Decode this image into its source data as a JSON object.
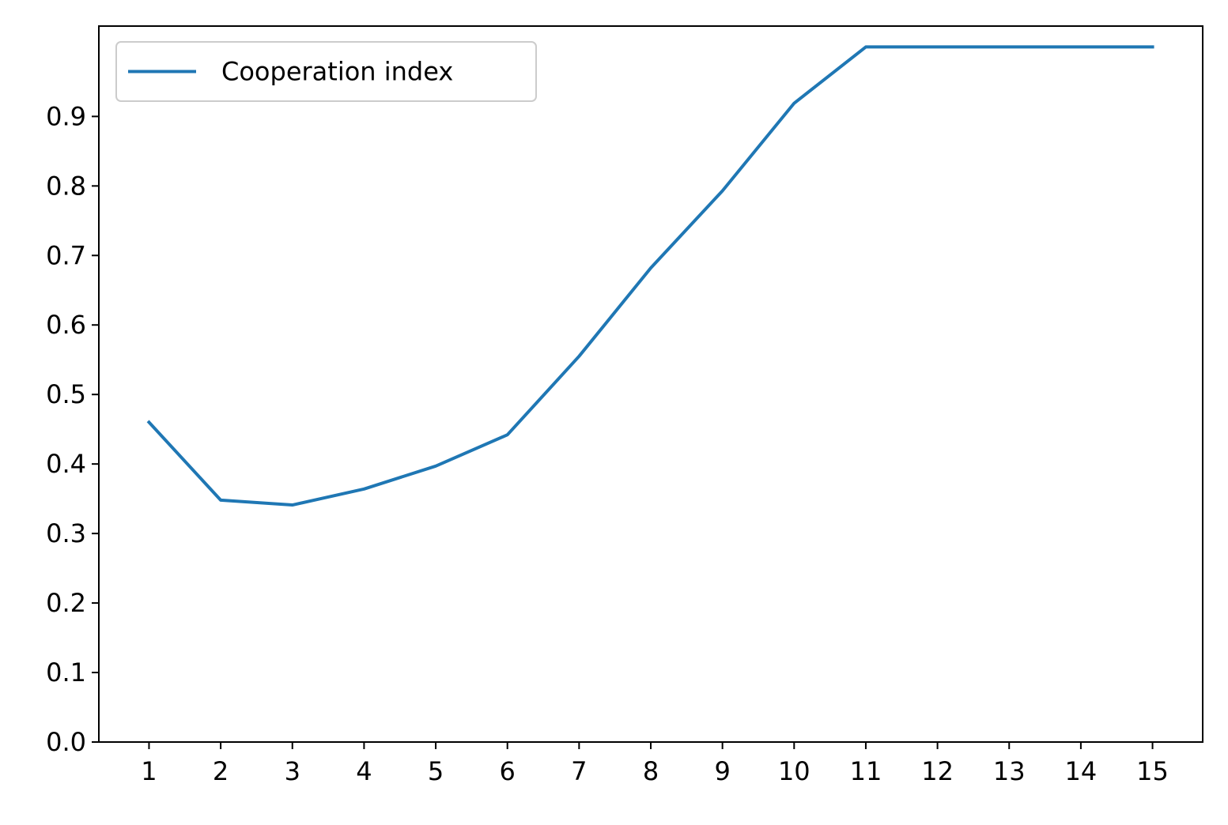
{
  "chart_data": {
    "type": "line",
    "title": "",
    "xlabel": "",
    "ylabel": "",
    "x": [
      1,
      2,
      3,
      4,
      5,
      6,
      7,
      8,
      9,
      10,
      11,
      12,
      13,
      14,
      15
    ],
    "xlim": [
      0.3,
      15.7
    ],
    "ylim": [
      0.0,
      1.03
    ],
    "xticks": [
      "1",
      "2",
      "3",
      "4",
      "5",
      "6",
      "7",
      "8",
      "9",
      "10",
      "11",
      "12",
      "13",
      "14",
      "15"
    ],
    "yticks": [
      "0.0",
      "0.1",
      "0.2",
      "0.3",
      "0.4",
      "0.5",
      "0.6",
      "0.7",
      "0.8",
      "0.9"
    ],
    "grid": false,
    "legend_position": "top-left",
    "series": [
      {
        "name": "Cooperation index",
        "color": "#1f77b4",
        "values": [
          0.46,
          0.348,
          0.341,
          0.364,
          0.397,
          0.442,
          0.555,
          0.682,
          0.793,
          0.919,
          1.0,
          1.0,
          1.0,
          1.0,
          1.0
        ]
      }
    ]
  }
}
